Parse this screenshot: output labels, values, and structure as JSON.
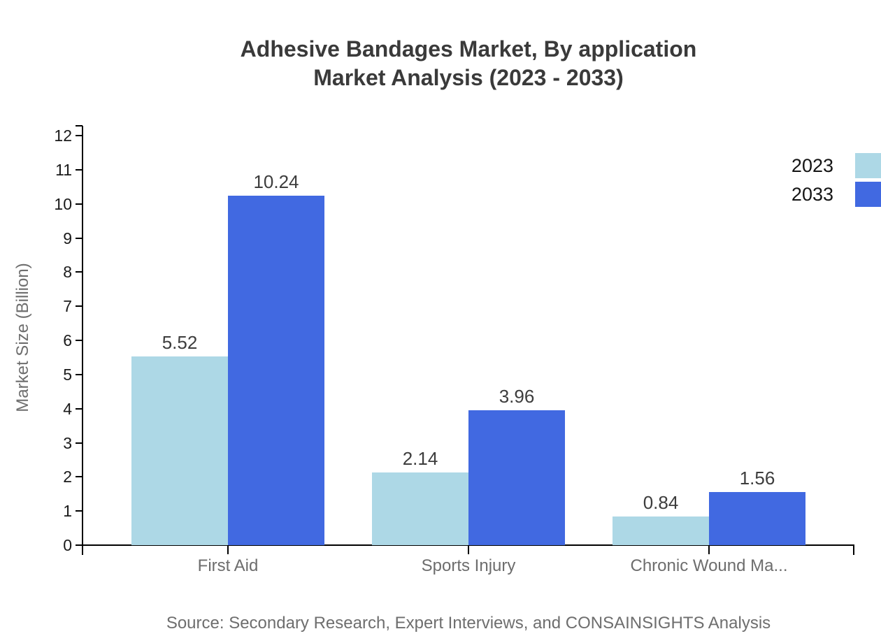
{
  "chart_data": {
    "type": "bar",
    "title": "Adhesive Bandages Market, By application",
    "subtitle": "Market Analysis (2023 - 2033)",
    "ylabel": "Market Size (Billion)",
    "xlabel": "",
    "categories": [
      "First Aid",
      "Sports Injury",
      "Chronic Wound Ma..."
    ],
    "series": [
      {
        "name": "2023",
        "color": "#ADD8E6",
        "values": [
          5.52,
          2.14,
          0.84
        ]
      },
      {
        "name": "2033",
        "color": "#4169E1",
        "values": [
          10.24,
          3.96,
          1.56
        ]
      }
    ],
    "ylim": [
      0,
      12.288
    ],
    "yticks": [
      0,
      1,
      2,
      3,
      4,
      5,
      6,
      7,
      8,
      9,
      10,
      11,
      12
    ],
    "value_labels": [
      "5.52",
      "10.24",
      "2.14",
      "3.96",
      "0.84",
      "1.56"
    ],
    "value_label_decimals": 2,
    "grid": false,
    "legend_position": "top-right"
  },
  "source_note": "Source: Secondary Research, Expert Interviews, and CONSAINSIGHTS Analysis",
  "colors": {
    "series_2023": "#ADD8E6",
    "series_2033": "#4169E1",
    "axis": "#000000",
    "title_text": "#3a3a3a",
    "tick_label_text": "#1a1a1a",
    "category_label_text": "#6d6d6d",
    "value_label_text": "#3d3d3d",
    "muted_text": "#6e6e6e",
    "legend_text": "#141414"
  }
}
